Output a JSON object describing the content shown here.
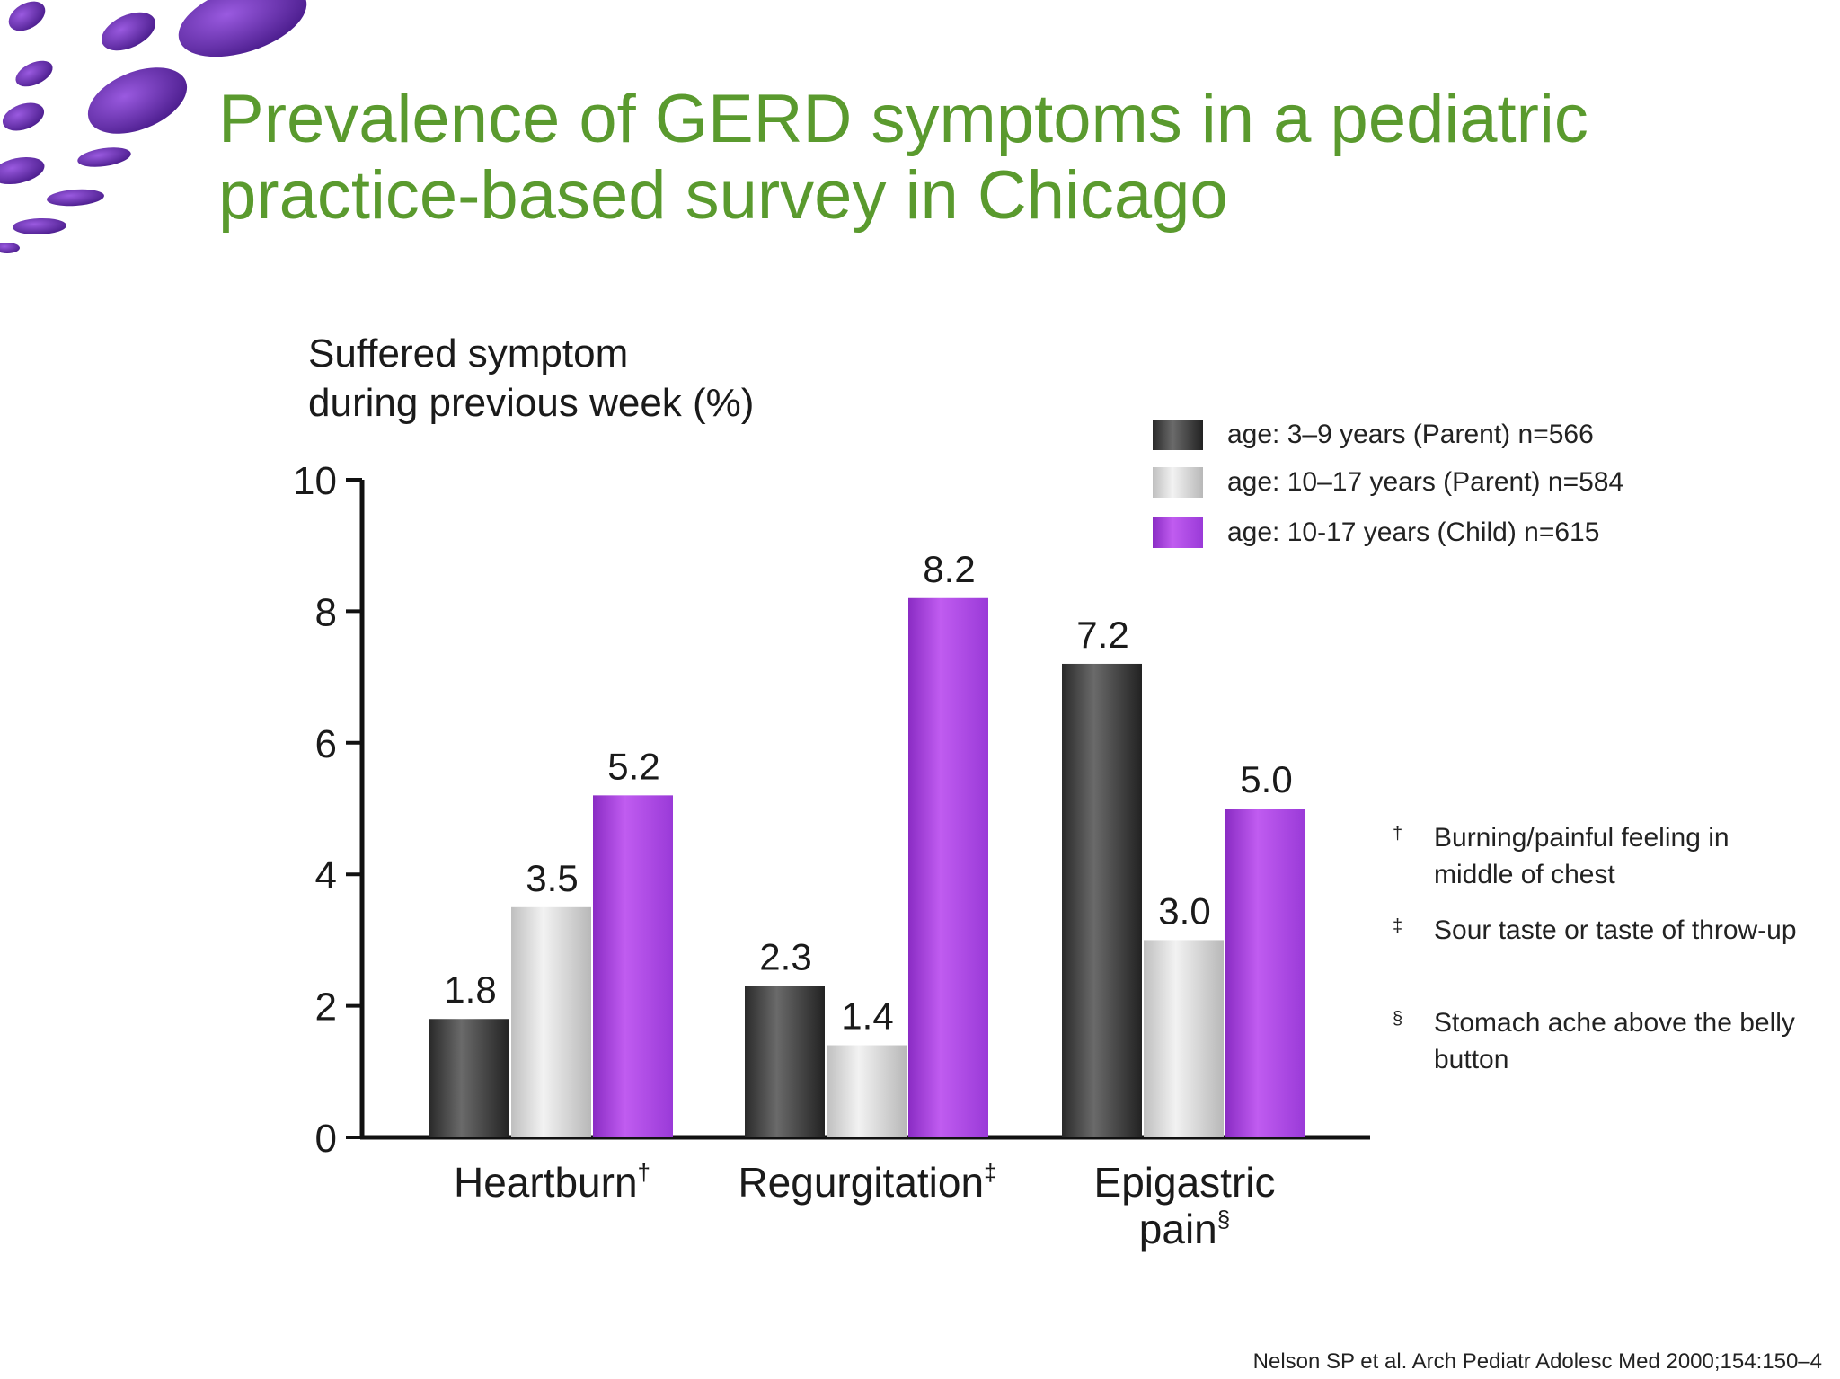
{
  "title_lines": [
    "Prevalence of GERD symptoms in a pediatric",
    "practice-based survey in Chicago"
  ],
  "colors": {
    "title": "#5a9a2e",
    "logo": "#6a2fb0",
    "series": [
      "#464646",
      "#d2d2d2",
      "#a64be0"
    ]
  },
  "chart_data": {
    "type": "bar",
    "ylabel_lines": [
      "Suffered symptom",
      "during previous week (%)"
    ],
    "ylim": [
      0,
      10
    ],
    "yticks": [
      0,
      2,
      4,
      6,
      8,
      10
    ],
    "categories": [
      {
        "label": "Heartburn",
        "mark": "†"
      },
      {
        "label": "Regurgitation",
        "mark": "‡"
      },
      {
        "label_lines": [
          "Epigastric",
          "pain"
        ],
        "mark": "§"
      }
    ],
    "series": [
      {
        "name": "age: 3–9 years (Parent) n=566",
        "values": [
          1.8,
          2.3,
          7.2
        ],
        "labels": [
          "1.8",
          "2.3",
          "7.2"
        ]
      },
      {
        "name": "age: 10–17 years (Parent) n=584",
        "values": [
          3.5,
          1.4,
          3.0
        ],
        "labels": [
          "3.5",
          "1.4",
          "3.0"
        ]
      },
      {
        "name": "age: 10-17 years (Child) n=615",
        "values": [
          5.2,
          8.2,
          5.0
        ],
        "labels": [
          "5.2",
          "8.2",
          "5.0"
        ]
      }
    ],
    "legend_position": "top-right",
    "grid": false
  },
  "footnotes": [
    {
      "mark": "†",
      "text": "Burning/painful feeling in middle of chest"
    },
    {
      "mark": "‡",
      "text": "Sour taste or taste of throw-up"
    },
    {
      "mark": "§",
      "text": "Stomach ache above the belly button"
    }
  ],
  "citation": "Nelson SP et al. Arch Pediatr Adolesc Med 2000;154:150–4"
}
